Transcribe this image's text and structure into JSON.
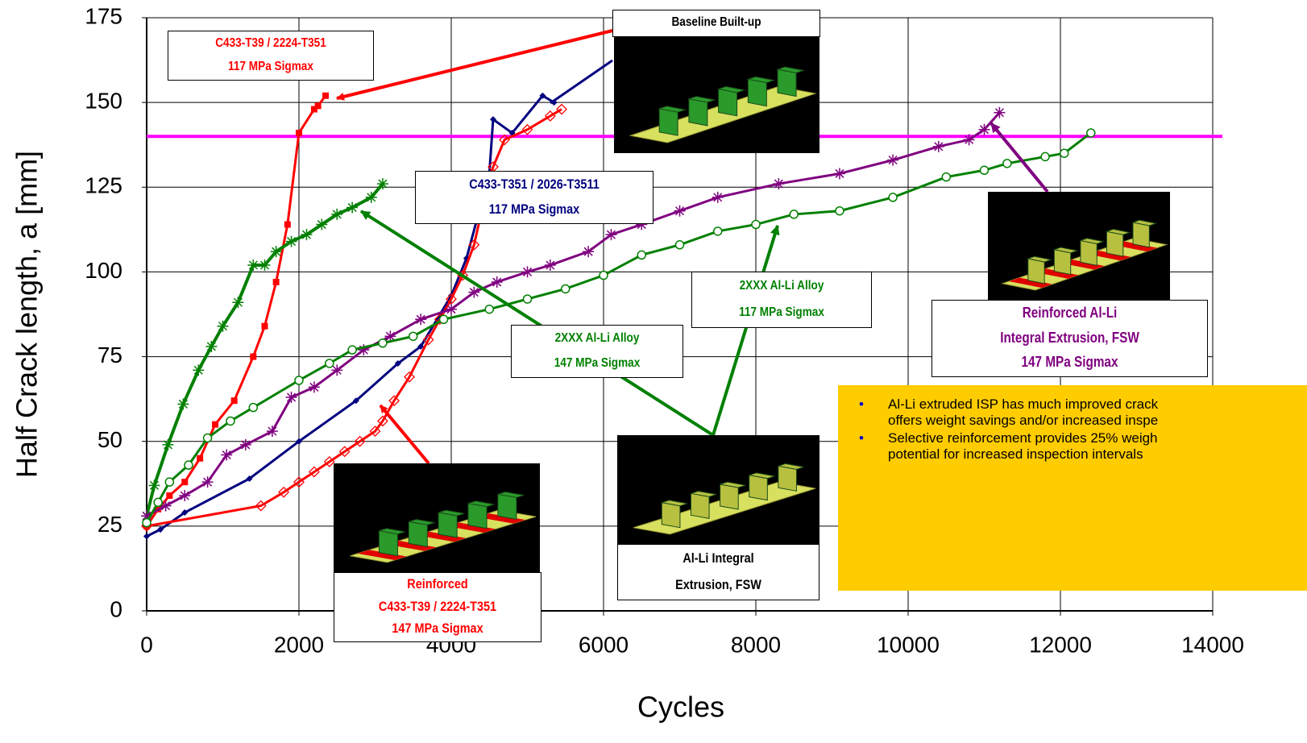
{
  "chart_data": {
    "type": "line",
    "x_label": "Cycles",
    "y_label": "Half Crack length, a [mm]",
    "xlim": [
      0,
      14000
    ],
    "ylim": [
      0,
      175
    ],
    "xticks": [
      0,
      2000,
      4000,
      6000,
      8000,
      10000,
      12000,
      14000
    ],
    "yticks": [
      0,
      25,
      50,
      75,
      100,
      125,
      150,
      175
    ],
    "grid": true,
    "hlines": [
      {
        "value": 140,
        "color": "#ff00ff"
      }
    ],
    "series": [
      {
        "color": "#ff0000",
        "marker": "square",
        "x": [
          0,
          150,
          300,
          500,
          700,
          900,
          1150,
          1400,
          1550,
          1700,
          1850,
          2000,
          2200,
          2250,
          2350
        ],
        "y": [
          25,
          30,
          34,
          38,
          45,
          55,
          62,
          75,
          84,
          97,
          114,
          141,
          148,
          149,
          152
        ]
      },
      {
        "color": "#008000",
        "marker": "star",
        "x": [
          0,
          100,
          280,
          480,
          680,
          850,
          1000,
          1200,
          1400,
          1550,
          1700,
          1900,
          2100,
          2300,
          2500,
          2700,
          2950,
          3100
        ],
        "y": [
          28,
          37,
          49,
          61,
          71,
          78,
          84,
          91,
          102,
          102,
          106,
          109,
          111,
          114,
          117,
          119,
          122,
          126
        ]
      },
      {
        "color": "#00007f",
        "marker": "diamond-filled",
        "x": [
          0,
          180,
          500,
          1350,
          2000,
          2750,
          3300,
          3600,
          4000,
          4200,
          4500,
          4550,
          4800,
          5200,
          5350
        ],
        "y": [
          22,
          24,
          29,
          39,
          50,
          62,
          73,
          78,
          93,
          104,
          129,
          145,
          141,
          152,
          150
        ]
      },
      {
        "color": "#ff0000",
        "marker": "diamond-open",
        "x": [
          0,
          1500,
          1800,
          2000,
          2200,
          2400,
          2600,
          2800,
          3000,
          3100,
          3250,
          3450,
          3700,
          3850,
          4000,
          4150,
          4300,
          4400,
          4550,
          4700,
          5000,
          5300,
          5450
        ],
        "y": [
          25,
          31,
          35,
          38,
          41,
          44,
          47,
          50,
          53,
          56,
          62,
          69,
          80,
          86,
          92,
          99,
          108,
          118,
          131,
          139,
          142,
          146,
          148
        ]
      },
      {
        "color": "#800080",
        "marker": "star",
        "x": [
          0,
          250,
          500,
          800,
          1050,
          1300,
          1650,
          1900,
          2200,
          2500,
          2850,
          3200,
          3600,
          4000,
          4300,
          4600,
          5000,
          5300,
          5800,
          6100,
          6500,
          7000,
          7500,
          8300,
          9100,
          9800,
          10400,
          10800,
          11000,
          11200
        ],
        "y": [
          28,
          31,
          34,
          38,
          46,
          49,
          53,
          63,
          66,
          71,
          77,
          81,
          86,
          89,
          94,
          97,
          100,
          102,
          106,
          111,
          114,
          118,
          122,
          126,
          129,
          133,
          137,
          139,
          142,
          147
        ]
      },
      {
        "color": "#008000",
        "marker": "circle",
        "x": [
          0,
          150,
          300,
          550,
          800,
          1100,
          1400,
          2000,
          2400,
          2700,
          3100,
          3500,
          3900,
          4500,
          5000,
          5500,
          6000,
          6500,
          7000,
          7500,
          8000,
          8500,
          9100,
          9800,
          10500,
          11000,
          11300,
          11800,
          12050,
          12400
        ],
        "y": [
          26,
          32,
          38,
          43,
          51,
          56,
          60,
          68,
          73,
          77,
          79,
          81,
          86,
          89,
          92,
          95,
          99,
          105,
          108,
          112,
          114,
          117,
          118,
          122,
          128,
          130,
          132,
          134,
          135,
          141
        ]
      }
    ],
    "annotations": [
      {
        "lines": [
          "C433-T39 / 2224-T351",
          "117 MPa Sigmax"
        ],
        "color": "#ff0000"
      },
      {
        "lines": [
          "Baseline Built-up"
        ],
        "color": "#000000"
      },
      {
        "lines": [
          "C433-T351 / 2026-T3511",
          "117 MPa Sigmax"
        ],
        "color": "#00007f"
      },
      {
        "lines": [
          "2XXX Al-Li Alloy",
          "117 MPa Sigmax"
        ],
        "color": "#008000"
      },
      {
        "lines": [
          "2XXX Al-Li Alloy",
          "147 MPa Sigmax"
        ],
        "color": "#008000"
      },
      {
        "lines": [
          "Reinforced Al-Li",
          "Integral Extrusion, FSW",
          "147 MPa Sigmax"
        ],
        "color": "#800080"
      },
      {
        "lines": [
          "Reinforced",
          "C433-T39 / 2224-T351",
          "147 MPa Sigmax"
        ],
        "color": "#ff0000"
      },
      {
        "lines": [
          "Al-Li Integral",
          "Extrusion, FSW"
        ],
        "color": "#000000"
      }
    ],
    "notes": [
      [
        "Al-Li extruded ISP has much improved crack",
        "offers weight savings and/or increased inspe"
      ],
      [
        "Selective reinforcement provides 25% weigh",
        "potential for increased inspection intervals"
      ]
    ]
  }
}
